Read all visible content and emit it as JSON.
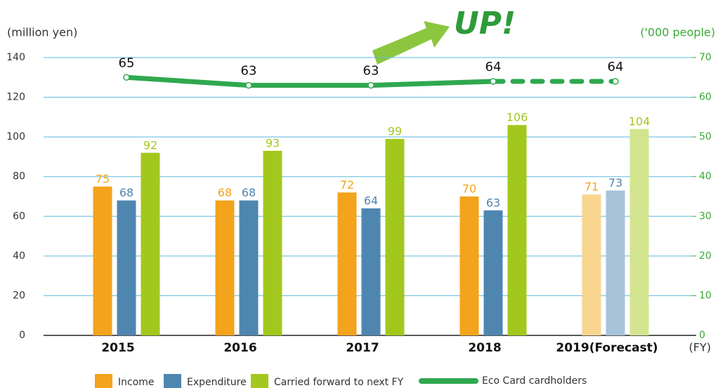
{
  "chart_data": {
    "type": "bar",
    "y_label": "(million yen)",
    "y2_label": "('000 people)",
    "x_label": "(FY)",
    "annotation": "UP!",
    "categories": [
      "2015",
      "2016",
      "2017",
      "2018",
      "2019(Forecast)"
    ],
    "series": [
      {
        "name": "Income",
        "color": "#f3a31c",
        "colors": [
          "#f3a31c",
          "#f3a31c",
          "#f3a31c",
          "#f3a31c",
          "#f8d58f"
        ],
        "values": [
          75,
          68,
          72,
          70,
          71
        ]
      },
      {
        "name": "Expenditure",
        "color": "#4f86b0",
        "colors": [
          "#4f86b0",
          "#4f86b0",
          "#4f86b0",
          "#4f86b0",
          "#a7c3d9"
        ],
        "values": [
          68,
          68,
          64,
          63,
          73
        ]
      },
      {
        "name": "Carried forward to next FY",
        "color": "#a3c81d",
        "colors": [
          "#a3c81d",
          "#a3c81d",
          "#a3c81d",
          "#a3c81d",
          "#d3e48f"
        ],
        "values": [
          92,
          93,
          99,
          106,
          104
        ]
      },
      {
        "name": "Eco Card cardholders",
        "type": "line",
        "axis": "y2",
        "color": "#2fa84f",
        "values": [
          65,
          63,
          63,
          64,
          64
        ]
      }
    ],
    "ylim": [
      0,
      140
    ],
    "yticks": [
      0,
      20,
      40,
      60,
      80,
      100,
      120,
      140
    ],
    "y2lim": [
      0,
      70
    ],
    "y2ticks": [
      0,
      10,
      20,
      30,
      40,
      50,
      60,
      70
    ],
    "y2_color": "#3aaa35",
    "grid": true,
    "grid_color": "#5bb8e0",
    "legend": "bottom"
  }
}
